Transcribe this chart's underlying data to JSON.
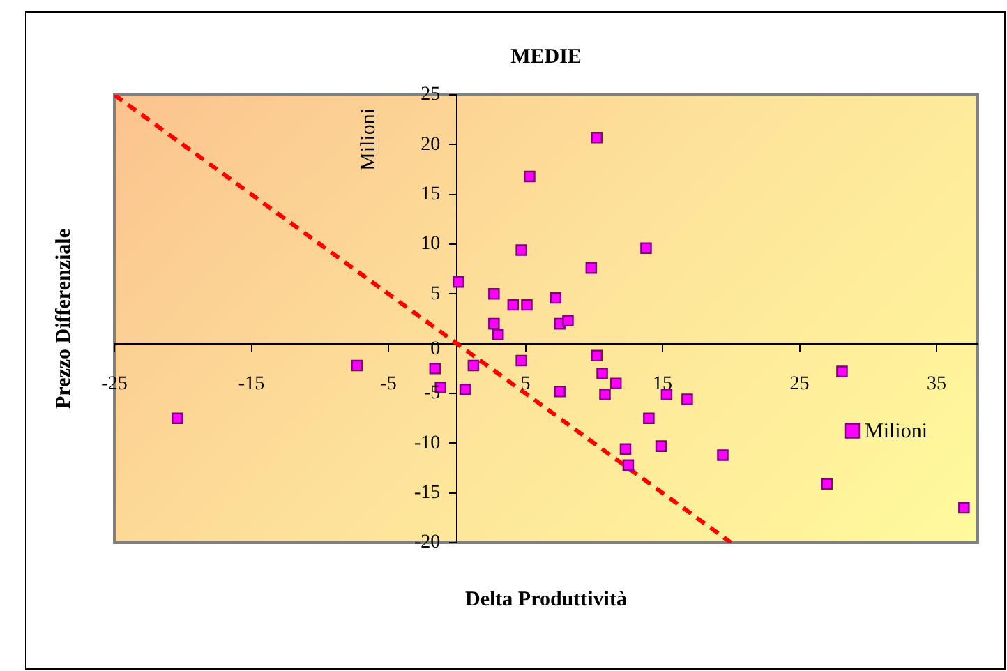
{
  "chart_data": {
    "type": "scatter",
    "title": "MEDIE",
    "xlabel": "Delta Produttività",
    "ylabel": "Prezzo Differenziale",
    "annotations": [
      "Milioni"
    ],
    "xlim": [
      -25,
      38
    ],
    "xticks": [
      -25,
      -15,
      -5,
      5,
      15,
      25,
      35
    ],
    "ylim": [
      -20,
      25
    ],
    "yticks": [
      -20,
      -15,
      -10,
      -5,
      0,
      5,
      10,
      15,
      20,
      25
    ],
    "grid": false,
    "legend": "right",
    "marker": "square",
    "series": [
      {
        "name": "Milioni",
        "color": "#ff00ff",
        "x": [
          -20.4,
          -7.3,
          -1.6,
          -1.2,
          0.1,
          0.6,
          1.2,
          2.7,
          2.7,
          3.0,
          4.1,
          4.7,
          4.7,
          5.1,
          5.3,
          10.2,
          13.8,
          9.8,
          7.2,
          7.5,
          8.1,
          10.2,
          10.6,
          11.6,
          7.5,
          10.8,
          15.3,
          16.8,
          14.0,
          12.3,
          14.9,
          12.5,
          19.4,
          28.1,
          27.0,
          37.0
        ],
        "values": [
          -7.5,
          -2.2,
          -2.5,
          -4.4,
          6.2,
          -4.6,
          -2.2,
          5.0,
          2.0,
          0.9,
          3.9,
          9.4,
          -1.7,
          3.9,
          16.8,
          20.7,
          9.6,
          7.6,
          4.6,
          2.0,
          2.3,
          -1.2,
          -3.0,
          -4.0,
          -4.8,
          -5.1,
          -5.1,
          -5.6,
          -7.5,
          -10.6,
          -10.3,
          -12.2,
          -11.2,
          -2.8,
          -14.1,
          -16.5
        ]
      },
      {
        "type": "line",
        "color": "#ff0000",
        "line_style": "dashed",
        "marker": "none",
        "x": [
          -25,
          20
        ],
        "values": [
          25,
          -20
        ]
      }
    ]
  }
}
